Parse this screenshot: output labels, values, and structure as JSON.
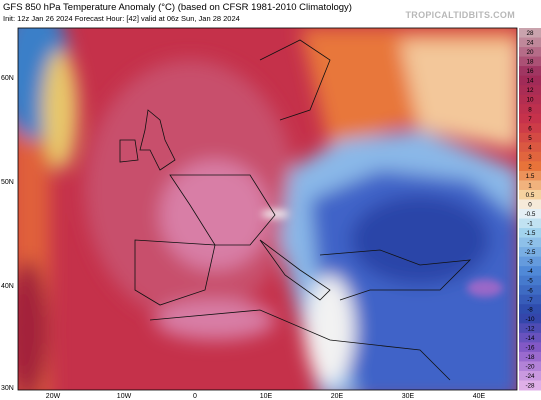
{
  "header": {
    "title": "GFS 850 hPa Temperature Anomaly (°C) (based on CFSR 1981-2010 Climatology)",
    "subtitle": "Init: 12z Jan 26 2024   Forecast Hour: [42]   valid at 06z Sun, Jan 28 2024",
    "brand": "TROPICALTIDBITS.COM"
  },
  "map": {
    "lat_labels": [
      "60N",
      "50N",
      "40N",
      "30N"
    ],
    "lon_labels": [
      "20W",
      "10W",
      "0",
      "10E",
      "20E",
      "30E",
      "40E"
    ]
  },
  "colorbar": {
    "labels": [
      28,
      24,
      20,
      18,
      16,
      14,
      12,
      10,
      8,
      7,
      6,
      5,
      4,
      3,
      2,
      1.5,
      1,
      0.5,
      0,
      -0.5,
      -1,
      -1.5,
      -2,
      -2.5,
      -3,
      -4,
      -5,
      -6,
      -7,
      -8,
      -10,
      -12,
      -14,
      -16,
      -18,
      -20,
      -24,
      -28
    ]
  }
}
